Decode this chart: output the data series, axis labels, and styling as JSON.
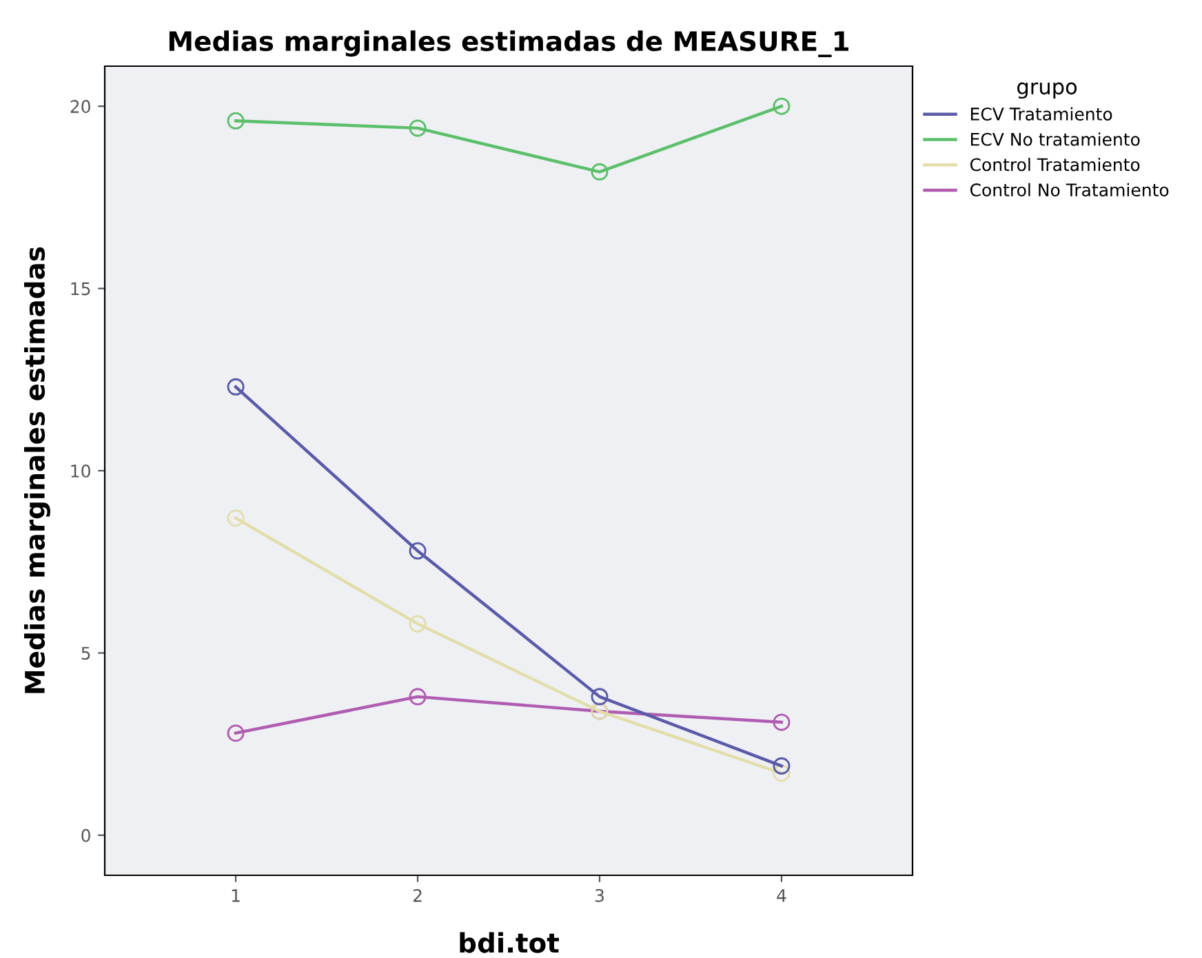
{
  "chart_data": {
    "type": "line",
    "title": "Medias marginales estimadas de MEASURE_1",
    "xlabel": "bdi.tot",
    "ylabel": "Medias marginales estimadas",
    "legend_title": "grupo",
    "x": [
      1,
      2,
      3,
      4
    ],
    "series": [
      {
        "name": "ECV Tratamiento",
        "color": "#5a5aa8",
        "values": [
          12.3,
          7.8,
          3.8,
          1.9
        ]
      },
      {
        "name": "ECV No tratamiento",
        "color": "#5cbf6a",
        "values": [
          19.6,
          19.4,
          18.2,
          20.0
        ]
      },
      {
        "name": "Control Tratamiento",
        "color": "#e2deaa",
        "values": [
          8.7,
          5.8,
          3.4,
          1.7
        ]
      },
      {
        "name": "Control No Tratamiento",
        "color": "#b05cb0",
        "values": [
          2.8,
          3.8,
          3.4,
          3.1
        ]
      }
    ],
    "xlim": [
      0.28,
      4.72
    ],
    "ylim": [
      -1.1,
      21.1
    ],
    "xticks": [
      1,
      2,
      3,
      4
    ],
    "yticks": [
      0,
      5,
      10,
      15,
      20
    ],
    "grid": false,
    "legend": "top right",
    "marker": "circle",
    "line_style": "solid"
  }
}
